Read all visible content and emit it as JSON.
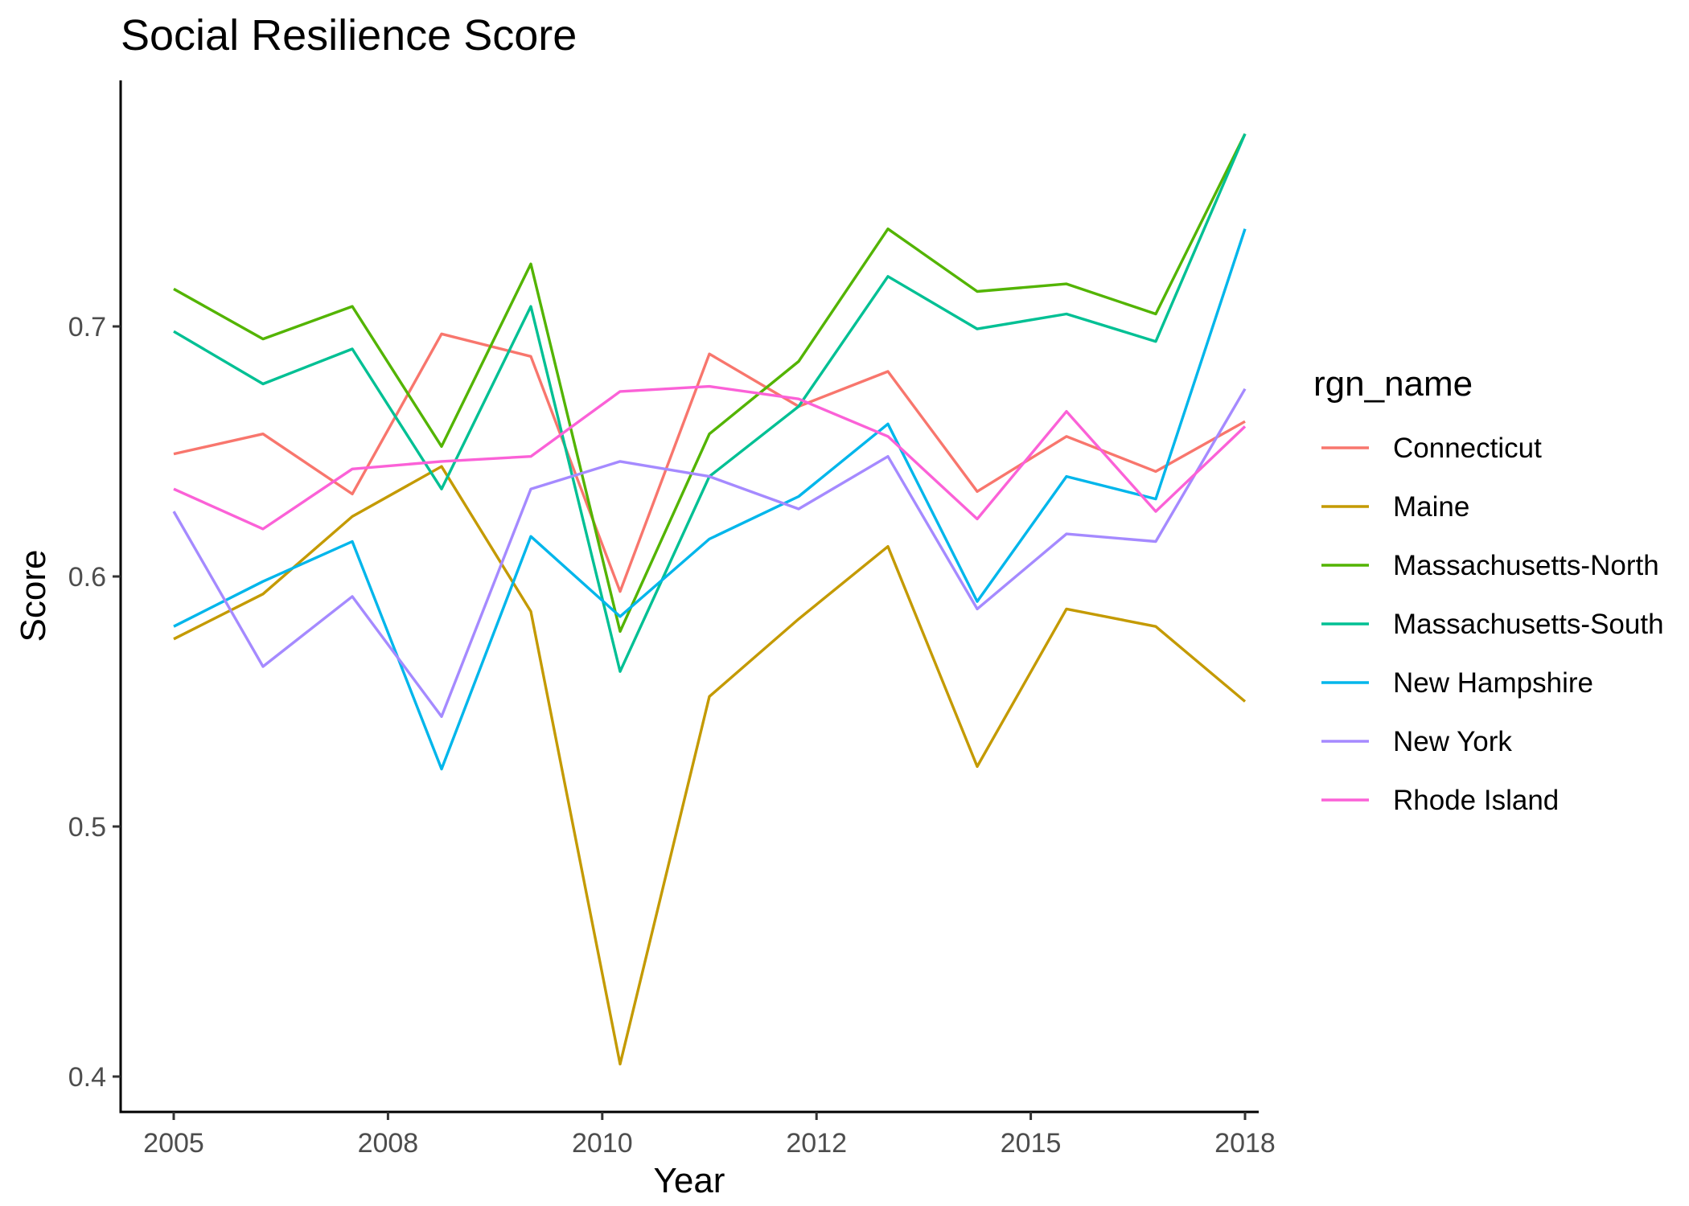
{
  "chart_data": {
    "type": "line",
    "title": "Social Resilience Score",
    "xlabel": "Year",
    "ylabel": "Score",
    "xlim": [
      2005,
      2018
    ],
    "ylim": [
      0.388,
      0.8
    ],
    "x_ticks": [
      2005,
      2008,
      2010,
      2012,
      2015,
      2018
    ],
    "x_tick_labels": [
      "2005",
      "2008",
      "2010",
      "2012",
      "2015",
      "2018"
    ],
    "y_ticks": [
      0.4,
      0.5,
      0.6,
      0.7
    ],
    "y_tick_labels": [
      "0.4",
      "0.5",
      "0.6",
      "0.7"
    ],
    "grid": false,
    "legend": {
      "title": "rgn_name",
      "position": "right"
    },
    "x": [
      2005,
      2006,
      2007,
      2008,
      2009,
      2010,
      2011,
      2012,
      2013,
      2014,
      2015,
      2016,
      2017
    ],
    "series": [
      {
        "name": "Connecticut",
        "color": "#F8766D",
        "values": [
          0.649,
          0.657,
          0.633,
          0.697,
          0.688,
          0.594,
          0.689,
          0.668,
          0.682,
          0.634,
          0.656,
          0.642,
          0.662
        ]
      },
      {
        "name": "Maine",
        "color": "#C49A00",
        "values": [
          0.575,
          0.593,
          0.624,
          0.644,
          0.586,
          0.405,
          0.552,
          0.583,
          0.612,
          0.524,
          0.587,
          0.58,
          0.55
        ]
      },
      {
        "name": "Massachusetts-North",
        "color": "#53B400",
        "values": [
          0.715,
          0.695,
          0.708,
          0.652,
          0.725,
          0.578,
          0.657,
          0.686,
          0.739,
          0.714,
          0.717,
          0.705,
          0.777
        ]
      },
      {
        "name": "Massachusetts-South",
        "color": "#00C094",
        "values": [
          0.698,
          0.677,
          0.691,
          0.635,
          0.708,
          0.562,
          0.64,
          0.668,
          0.72,
          0.699,
          0.705,
          0.694,
          0.777
        ]
      },
      {
        "name": "New Hampshire",
        "color": "#00B6EB",
        "values": [
          0.58,
          0.598,
          0.614,
          0.523,
          0.616,
          0.584,
          0.615,
          0.632,
          0.661,
          0.59,
          0.64,
          0.631,
          0.739
        ]
      },
      {
        "name": "New York",
        "color": "#A58AFF",
        "values": [
          0.626,
          0.564,
          0.592,
          0.544,
          0.635,
          0.646,
          0.64,
          0.627,
          0.648,
          0.587,
          0.617,
          0.614,
          0.675
        ]
      },
      {
        "name": "Rhode Island",
        "color": "#FB61D7",
        "values": [
          0.635,
          0.619,
          0.643,
          0.646,
          0.648,
          0.674,
          0.676,
          0.671,
          0.656,
          0.623,
          0.666,
          0.626,
          0.66
        ]
      }
    ]
  }
}
